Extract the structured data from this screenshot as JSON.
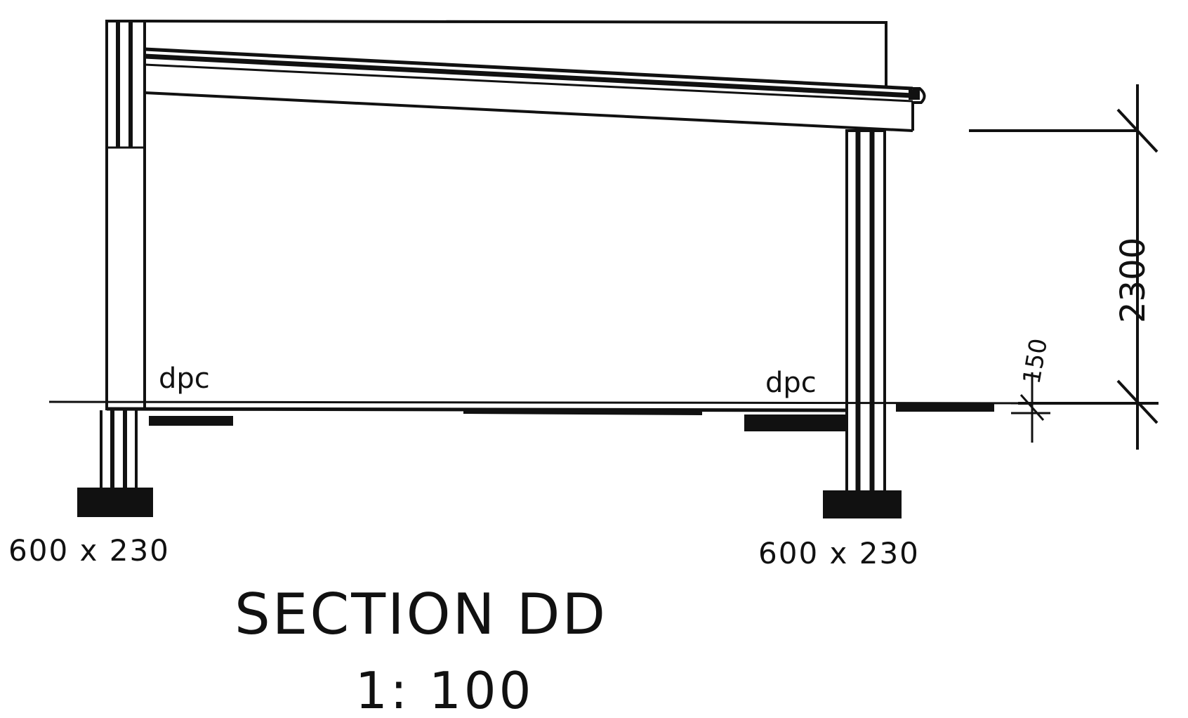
{
  "drawing": {
    "labels": {
      "dpc_left": "dpc",
      "dpc_right": "dpc",
      "footing_left": "600 x 230",
      "footing_right": "600 x 230",
      "height_dimension": "2300",
      "step_dimension": "150",
      "title": "SECTION DD",
      "scale": "1: 100"
    },
    "colors": {
      "ink": "#111111",
      "paper": "#ffffff"
    }
  }
}
